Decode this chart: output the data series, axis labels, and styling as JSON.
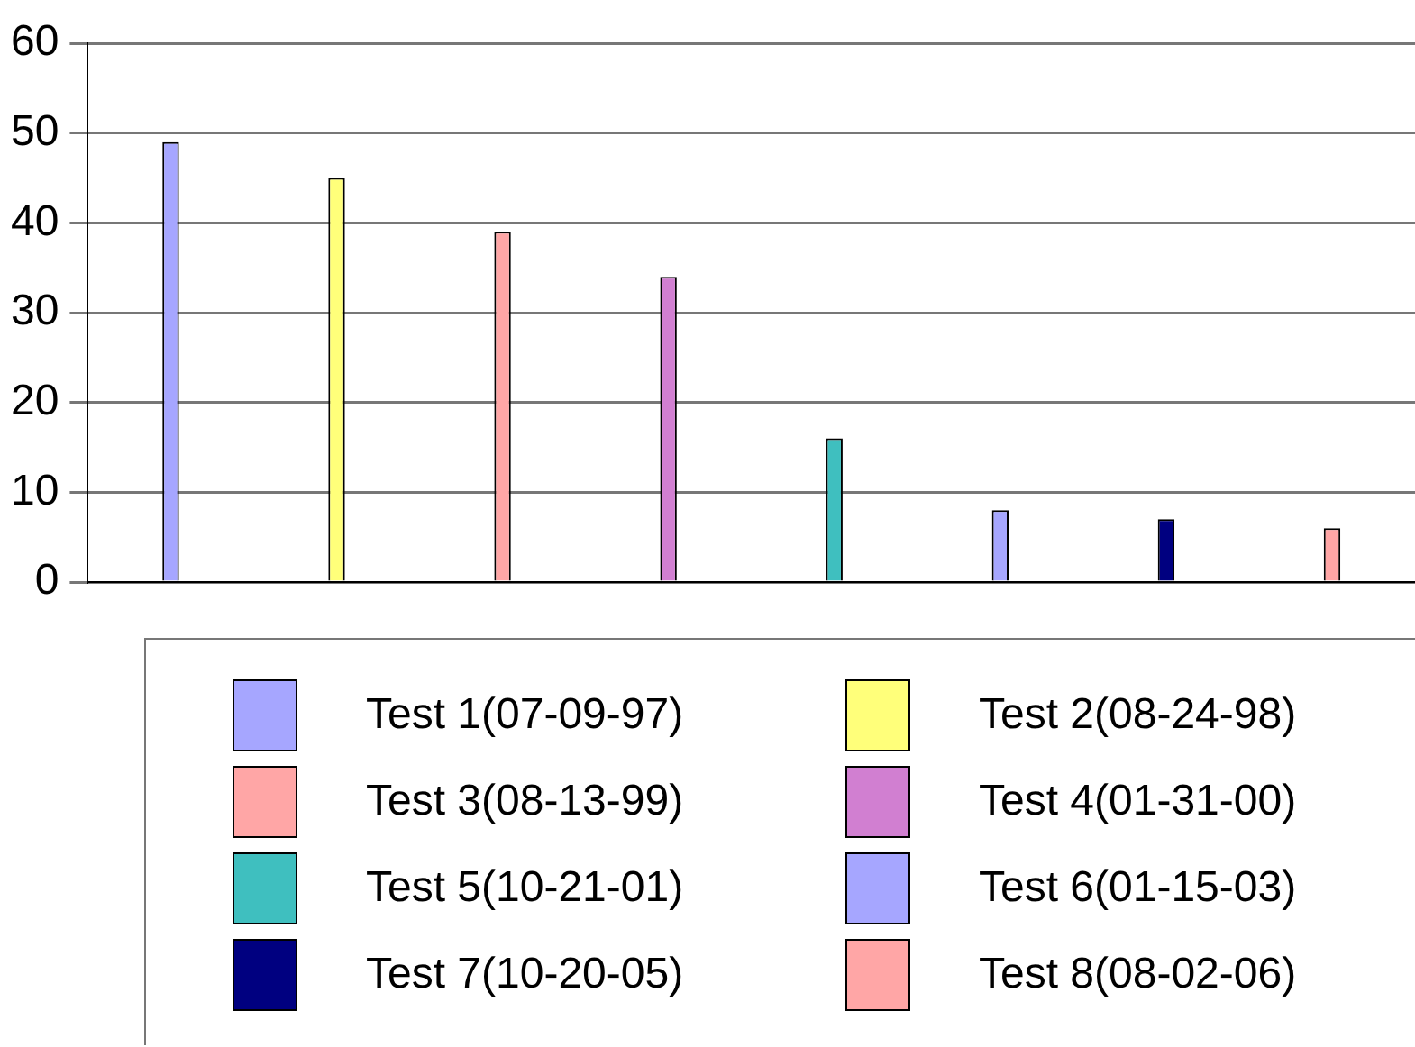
{
  "chart_data": {
    "type": "bar",
    "categories": [
      null,
      null,
      null,
      null,
      null,
      null,
      null,
      null
    ],
    "series": [
      {
        "name": "Test 1(07-09-97)",
        "color": "#a6a6ff",
        "values": [
          49,
          null,
          null,
          null,
          null,
          null,
          null,
          null
        ]
      },
      {
        "name": "Test 2(08-24-98)",
        "color": "#ffff7a",
        "values": [
          null,
          45,
          null,
          null,
          null,
          null,
          null,
          null
        ]
      },
      {
        "name": "Test 3(08-13-99)",
        "color": "#ffa6a6",
        "values": [
          null,
          null,
          39,
          null,
          null,
          null,
          null,
          null
        ]
      },
      {
        "name": "Test 4(01-31-00)",
        "color": "#d17fd1",
        "values": [
          null,
          null,
          null,
          34,
          null,
          null,
          null,
          null
        ]
      },
      {
        "name": "Test 5(10-21-01)",
        "color": "#3fbfbf",
        "values": [
          null,
          null,
          null,
          null,
          16,
          null,
          null,
          null
        ]
      },
      {
        "name": "Test 6(01-15-03)",
        "color": "#a6a6ff",
        "values": [
          null,
          null,
          null,
          null,
          null,
          8,
          null,
          null
        ]
      },
      {
        "name": "Test 7(10-20-05)",
        "color": "#000080",
        "values": [
          null,
          null,
          null,
          null,
          null,
          null,
          7,
          null
        ]
      },
      {
        "name": "Test 8(08-02-06)",
        "color": "#ffa6a6",
        "values": [
          null,
          null,
          null,
          null,
          null,
          null,
          null,
          6
        ]
      }
    ],
    "ylim": [
      0,
      60
    ],
    "yticks": [
      0,
      10,
      20,
      30,
      40,
      50,
      60
    ],
    "grid": "y",
    "legend": "bottom",
    "tick_labels": "y"
  }
}
